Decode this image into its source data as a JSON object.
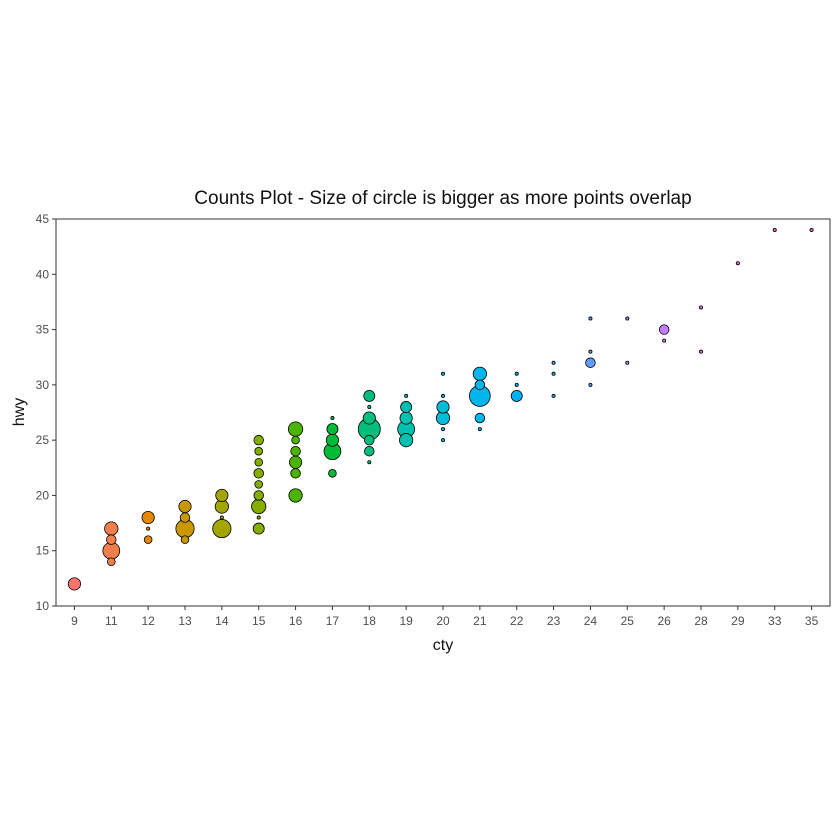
{
  "chart_data": {
    "type": "scatter",
    "title": "Counts Plot - Size of circle is bigger as more points overlap",
    "xlabel": "cty",
    "ylabel": "hwy",
    "x_categories": [
      "9",
      "11",
      "12",
      "13",
      "14",
      "15",
      "16",
      "17",
      "18",
      "19",
      "20",
      "21",
      "22",
      "23",
      "24",
      "25",
      "26",
      "28",
      "29",
      "33",
      "35"
    ],
    "ylim": [
      10,
      45
    ],
    "y_ticks": [
      "10",
      "15",
      "20",
      "25",
      "30",
      "35",
      "40",
      "45"
    ],
    "grid": false,
    "legend": "none",
    "colors": [
      "#F8766D",
      "#F07F4D",
      "#E58700",
      "#C99800",
      "#A3A500",
      "#85AD00",
      "#4CB400",
      "#00BA38",
      "#00BF7D",
      "#00C0AF",
      "#00BCD8",
      "#00B6EB",
      "#00B0F6",
      "#35A2FF",
      "#619CFF",
      "#9590FF",
      "#C77CFF",
      "#E76BF3",
      "#FA62DB",
      "#FF62BC",
      "#FF6A98"
    ],
    "points": [
      {
        "x": "9",
        "y": 12,
        "count": 5
      },
      {
        "x": "11",
        "y": 14,
        "count": 2
      },
      {
        "x": "11",
        "y": 15,
        "count": 10
      },
      {
        "x": "11",
        "y": 16,
        "count": 3
      },
      {
        "x": "11",
        "y": 17,
        "count": 6
      },
      {
        "x": "12",
        "y": 16,
        "count": 2
      },
      {
        "x": "12",
        "y": 17,
        "count": 1
      },
      {
        "x": "12",
        "y": 18,
        "count": 5
      },
      {
        "x": "13",
        "y": 16,
        "count": 2
      },
      {
        "x": "13",
        "y": 17,
        "count": 12
      },
      {
        "x": "13",
        "y": 18,
        "count": 3
      },
      {
        "x": "13",
        "y": 19,
        "count": 5
      },
      {
        "x": "14",
        "y": 17,
        "count": 12
      },
      {
        "x": "14",
        "y": 18,
        "count": 1
      },
      {
        "x": "14",
        "y": 19,
        "count": 6
      },
      {
        "x": "14",
        "y": 20,
        "count": 5
      },
      {
        "x": "15",
        "y": 17,
        "count": 4
      },
      {
        "x": "15",
        "y": 18,
        "count": 1
      },
      {
        "x": "15",
        "y": 19,
        "count": 7
      },
      {
        "x": "15",
        "y": 20,
        "count": 3
      },
      {
        "x": "15",
        "y": 21,
        "count": 2
      },
      {
        "x": "15",
        "y": 22,
        "count": 3
      },
      {
        "x": "15",
        "y": 23,
        "count": 2
      },
      {
        "x": "15",
        "y": 24,
        "count": 2
      },
      {
        "x": "15",
        "y": 25,
        "count": 3
      },
      {
        "x": "16",
        "y": 20,
        "count": 6
      },
      {
        "x": "16",
        "y": 22,
        "count": 3
      },
      {
        "x": "16",
        "y": 23,
        "count": 5
      },
      {
        "x": "16",
        "y": 24,
        "count": 3
      },
      {
        "x": "16",
        "y": 25,
        "count": 2
      },
      {
        "x": "16",
        "y": 26,
        "count": 7
      },
      {
        "x": "17",
        "y": 22,
        "count": 2
      },
      {
        "x": "17",
        "y": 24,
        "count": 10
      },
      {
        "x": "17",
        "y": 25,
        "count": 5
      },
      {
        "x": "17",
        "y": 26,
        "count": 4
      },
      {
        "x": "17",
        "y": 27,
        "count": 1
      },
      {
        "x": "18",
        "y": 23,
        "count": 1
      },
      {
        "x": "18",
        "y": 24,
        "count": 3
      },
      {
        "x": "18",
        "y": 25,
        "count": 3
      },
      {
        "x": "18",
        "y": 26,
        "count": 18
      },
      {
        "x": "18",
        "y": 27,
        "count": 5
      },
      {
        "x": "18",
        "y": 28,
        "count": 1
      },
      {
        "x": "18",
        "y": 29,
        "count": 4
      },
      {
        "x": "19",
        "y": 25,
        "count": 6
      },
      {
        "x": "19",
        "y": 26,
        "count": 10
      },
      {
        "x": "19",
        "y": 27,
        "count": 5
      },
      {
        "x": "19",
        "y": 28,
        "count": 4
      },
      {
        "x": "19",
        "y": 29,
        "count": 1
      },
      {
        "x": "20",
        "y": 25,
        "count": 1
      },
      {
        "x": "20",
        "y": 26,
        "count": 1
      },
      {
        "x": "20",
        "y": 27,
        "count": 6
      },
      {
        "x": "20",
        "y": 28,
        "count": 5
      },
      {
        "x": "20",
        "y": 29,
        "count": 1
      },
      {
        "x": "20",
        "y": 31,
        "count": 1
      },
      {
        "x": "21",
        "y": 26,
        "count": 1
      },
      {
        "x": "21",
        "y": 27,
        "count": 3
      },
      {
        "x": "21",
        "y": 29,
        "count": 16
      },
      {
        "x": "21",
        "y": 30,
        "count": 3
      },
      {
        "x": "21",
        "y": 31,
        "count": 6
      },
      {
        "x": "22",
        "y": 29,
        "count": 4
      },
      {
        "x": "22",
        "y": 30,
        "count": 1
      },
      {
        "x": "22",
        "y": 31,
        "count": 1
      },
      {
        "x": "23",
        "y": 29,
        "count": 1
      },
      {
        "x": "23",
        "y": 31,
        "count": 1
      },
      {
        "x": "23",
        "y": 32,
        "count": 1
      },
      {
        "x": "24",
        "y": 30,
        "count": 1
      },
      {
        "x": "24",
        "y": 32,
        "count": 3
      },
      {
        "x": "24",
        "y": 33,
        "count": 1
      },
      {
        "x": "24",
        "y": 36,
        "count": 1
      },
      {
        "x": "25",
        "y": 32,
        "count": 1
      },
      {
        "x": "25",
        "y": 36,
        "count": 1
      },
      {
        "x": "26",
        "y": 34,
        "count": 1
      },
      {
        "x": "26",
        "y": 35,
        "count": 3
      },
      {
        "x": "28",
        "y": 33,
        "count": 1
      },
      {
        "x": "28",
        "y": 37,
        "count": 1
      },
      {
        "x": "29",
        "y": 41,
        "count": 1
      },
      {
        "x": "33",
        "y": 44,
        "count": 1
      },
      {
        "x": "35",
        "y": 44,
        "count": 1
      }
    ]
  }
}
